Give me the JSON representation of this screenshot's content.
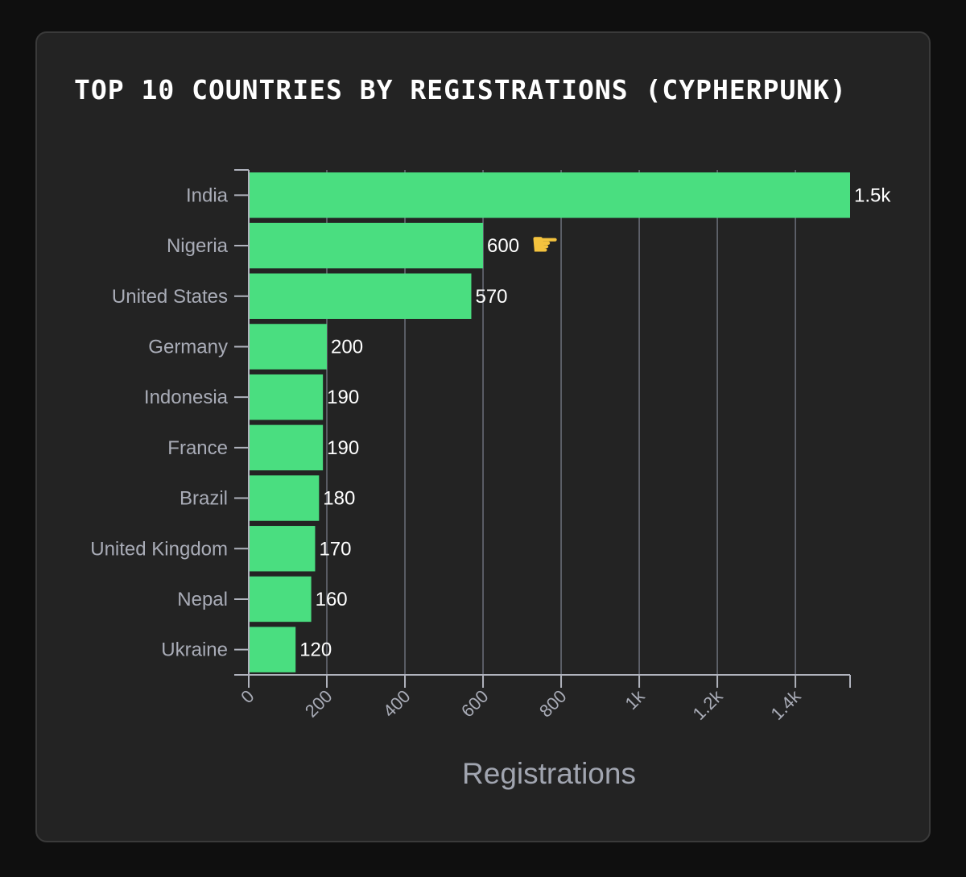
{
  "chart_data": {
    "type": "bar",
    "orientation": "horizontal",
    "title": "TOP 10 COUNTRIES BY REGISTRATIONS (CYPHERPUNK)",
    "xlabel": "Registrations",
    "ylabel": "",
    "categories": [
      "India",
      "Nigeria",
      "United States",
      "Germany",
      "Indonesia",
      "France",
      "Brazil",
      "United Kingdom",
      "Nepal",
      "Ukraine"
    ],
    "values": [
      1540,
      600,
      570,
      200,
      190,
      190,
      180,
      170,
      160,
      120
    ],
    "data_labels": [
      "1.5k",
      "600",
      "570",
      "200",
      "190",
      "190",
      "180",
      "170",
      "160",
      "120"
    ],
    "x_ticks": [
      0,
      200,
      400,
      600,
      800,
      1000,
      1200,
      1400
    ],
    "x_tick_labels": [
      "0",
      "200",
      "400",
      "600",
      "800",
      "1k",
      "1.2k",
      "1.4k"
    ],
    "xlim": [
      0,
      1540
    ],
    "grid": "vertical",
    "bar_color": "#4ade80",
    "highlight_category": "Nigeria",
    "highlight_icon": "pointing-hand-icon"
  }
}
